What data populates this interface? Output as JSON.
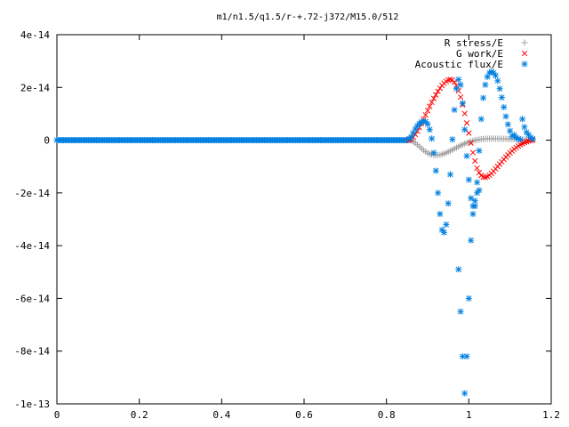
{
  "chart_data": {
    "type": "scatter",
    "title": "m1/n1.5/q1.5/r-+.72-j372/M15.0/512",
    "xlabel": "",
    "ylabel": "",
    "xlim": [
      0,
      1.2
    ],
    "ylim": [
      -1e-13,
      4e-14
    ],
    "grid": false,
    "legend_position": "top-right",
    "x_ticks": [
      {
        "value": 0,
        "label": "0"
      },
      {
        "value": 0.2,
        "label": "0.2"
      },
      {
        "value": 0.4,
        "label": "0.4"
      },
      {
        "value": 0.6,
        "label": "0.6"
      },
      {
        "value": 0.8,
        "label": "0.8"
      },
      {
        "value": 1.0,
        "label": "1"
      },
      {
        "value": 1.2,
        "label": "1.2"
      }
    ],
    "y_ticks": [
      {
        "value": 4e-14,
        "label": "4e-14"
      },
      {
        "value": 2e-14,
        "label": "2e-14"
      },
      {
        "value": 0,
        "label": "0"
      },
      {
        "value": -2e-14,
        "label": "-2e-14"
      },
      {
        "value": -4e-14,
        "label": "-4e-14"
      },
      {
        "value": -6e-14,
        "label": "-6e-14"
      },
      {
        "value": -8e-14,
        "label": "-8e-14"
      },
      {
        "value": -1e-13,
        "label": "-1e-13"
      }
    ],
    "series": [
      {
        "name": "R stress/E",
        "marker": "plus",
        "color": "#a0a0a0",
        "x": [
          0.855,
          0.86,
          0.865,
          0.87,
          0.875,
          0.88,
          0.885,
          0.89,
          0.895,
          0.9,
          0.905,
          0.91,
          0.915,
          0.92,
          0.925,
          0.93,
          0.935,
          0.94,
          0.945,
          0.95,
          0.955,
          0.96,
          0.965,
          0.97,
          0.975,
          0.98,
          0.985,
          0.99,
          0.995,
          1.0,
          1.005,
          1.01,
          1.015,
          1.02,
          1.025,
          1.03,
          1.035,
          1.04,
          1.045,
          1.05,
          1.055,
          1.06,
          1.065,
          1.07,
          1.075,
          1.08,
          1.085,
          1.09,
          1.095,
          1.1,
          1.105,
          1.11,
          1.115,
          1.12,
          1.125,
          1.13,
          1.135,
          1.14,
          1.145,
          1.15,
          1.155
        ],
        "y": [
          0.0,
          -1.5e-16,
          -5.2e-16,
          -1.07e-15,
          -1.72e-15,
          -2.42e-15,
          -3.12e-15,
          -3.78e-15,
          -4.37e-15,
          -4.86e-15,
          -5.24e-15,
          -5.51e-15,
          -5.67e-15,
          -5.72e-15,
          -5.68e-15,
          -5.56e-15,
          -5.36e-15,
          -5.1e-15,
          -4.79e-15,
          -4.44e-15,
          -4.06e-15,
          -3.66e-15,
          -3.25e-15,
          -2.84e-15,
          -2.43e-15,
          -2.04e-15,
          -1.67e-15,
          -1.32e-15,
          -1e-15,
          -7.1e-16,
          -4.5e-16,
          -2.3e-16,
          -3e-17,
          1.3e-16,
          2.6e-16,
          3.6e-16,
          4.4e-16,
          5e-16,
          5.4e-16,
          5.7e-16,
          5.8e-16,
          5.8e-16,
          5.7e-16,
          5.6e-16,
          5.4e-16,
          5.2e-16,
          5e-16,
          4.7e-16,
          4.5e-16,
          4.3e-16,
          4e-16,
          3.8e-16,
          3.6e-16,
          3.4e-16,
          3.2e-16,
          3e-16,
          2.8e-16,
          2.6e-16,
          2e-16,
          1.2e-16,
          3e-17
        ]
      },
      {
        "name": "G work/E",
        "marker": "cross",
        "color": "#ff0000",
        "x": [
          0.855,
          0.86,
          0.865,
          0.87,
          0.875,
          0.88,
          0.885,
          0.89,
          0.895,
          0.9,
          0.905,
          0.91,
          0.915,
          0.92,
          0.925,
          0.93,
          0.935,
          0.94,
          0.945,
          0.95,
          0.955,
          0.96,
          0.965,
          0.97,
          0.975,
          0.98,
          0.985,
          0.99,
          0.995,
          1.0,
          1.005,
          1.01,
          1.015,
          1.02,
          1.025,
          1.03,
          1.035,
          1.04,
          1.045,
          1.05,
          1.055,
          1.06,
          1.065,
          1.07,
          1.075,
          1.08,
          1.085,
          1.09,
          1.095,
          1.1,
          1.105,
          1.11,
          1.115,
          1.12,
          1.125,
          1.13,
          1.135,
          1.14,
          1.145,
          1.15,
          1.155
        ],
        "y": [
          0.0,
          3.9e-16,
          1.16e-15,
          2.19e-15,
          3.41e-15,
          4.79e-15,
          6.3e-15,
          7.91e-15,
          9.56e-15,
          1.121e-14,
          1.283e-14,
          1.436e-14,
          1.581e-14,
          1.72e-14,
          1.85e-14,
          1.968e-14,
          2.072e-14,
          2.16e-14,
          2.23e-14,
          2.28e-14,
          2.3e-14,
          2.28e-14,
          2.2e-14,
          2.06e-14,
          1.87e-14,
          1.63e-14,
          1.34e-14,
          1.01e-14,
          6.5e-15,
          2.7e-15,
          -1.1e-15,
          -4.7e-15,
          -7.9e-15,
          -1.06e-14,
          -1.23e-14,
          -1.34e-14,
          -1.4e-14,
          -1.41e-14,
          -1.38e-14,
          -1.33e-14,
          -1.26e-14,
          -1.18e-14,
          -1.09e-14,
          -1e-14,
          -9.1e-15,
          -8.2e-15,
          -7.3e-15,
          -6.4e-15,
          -5.6e-15,
          -4.8e-15,
          -4.1e-15,
          -3.4e-15,
          -2.8e-15,
          -2.2e-15,
          -1.7e-15,
          -1.3e-15,
          -9e-16,
          -6e-16,
          -3e-16,
          -1e-16,
          0.0
        ]
      },
      {
        "name": "Acoustic flux/E",
        "marker": "star",
        "color": "#0080e0",
        "x": [
          0.855,
          0.86,
          0.865,
          0.87,
          0.875,
          0.88,
          0.885,
          0.89,
          0.895,
          0.9,
          0.905,
          0.91,
          0.915,
          0.92,
          0.925,
          0.93,
          0.935,
          0.94,
          0.945,
          0.95,
          0.955,
          0.96,
          0.965,
          0.97,
          0.975,
          0.98,
          0.985,
          0.99,
          0.995,
          1.0,
          1.005,
          1.01,
          1.015,
          1.02,
          1.025,
          1.03,
          1.035,
          1.04,
          1.045,
          1.05,
          1.055,
          1.06,
          1.065,
          1.07,
          1.075,
          1.08,
          1.085,
          1.09,
          1.095,
          1.1,
          1.105,
          1.11,
          1.115,
          1.12,
          1.125,
          1.13,
          1.135,
          1.14,
          1.145,
          1.15,
          1.155,
          0.975,
          0.98,
          0.985,
          0.99,
          0.995,
          1.0,
          1.005,
          1.01,
          1.015,
          1.02,
          1.025
        ],
        "y": [
          6e-16,
          1.2e-15,
          2.7e-15,
          4.2e-15,
          5.4e-15,
          6.3e-15,
          6.9e-15,
          7.2e-15,
          7e-15,
          6.1e-15,
          4e-15,
          6e-16,
          -4.8e-15,
          -1.16e-14,
          -2e-14,
          -2.8e-14,
          -3.4e-14,
          -3.5e-14,
          -3.2e-14,
          -2.4e-14,
          -1.3e-14,
          3e-16,
          1.15e-14,
          1.95e-14,
          2.3e-14,
          2.1e-14,
          1.4e-14,
          4e-15,
          -6e-15,
          -1.5e-14,
          -2.2e-14,
          -2.5e-14,
          -2.3e-14,
          -1.6e-14,
          -4e-15,
          8e-15,
          1.6e-14,
          2.1e-14,
          2.4e-14,
          2.55e-14,
          2.6e-14,
          2.55e-14,
          2.45e-14,
          2.25e-14,
          1.95e-14,
          1.62e-14,
          1.25e-14,
          9e-15,
          6e-15,
          3.5e-15,
          1.5e-15,
          2e-15,
          1e-15,
          5e-16,
          2e-16,
          8e-15,
          5e-15,
          3e-15,
          2e-15,
          1e-15,
          5e-16,
          -4.9e-14,
          -6.5e-14,
          -8.2e-14,
          -9.6e-14,
          -8.2e-14,
          -6e-14,
          -3.8e-14,
          -2.8e-14,
          -2.5e-14,
          -2e-14,
          -1.9e-14
        ]
      }
    ]
  }
}
